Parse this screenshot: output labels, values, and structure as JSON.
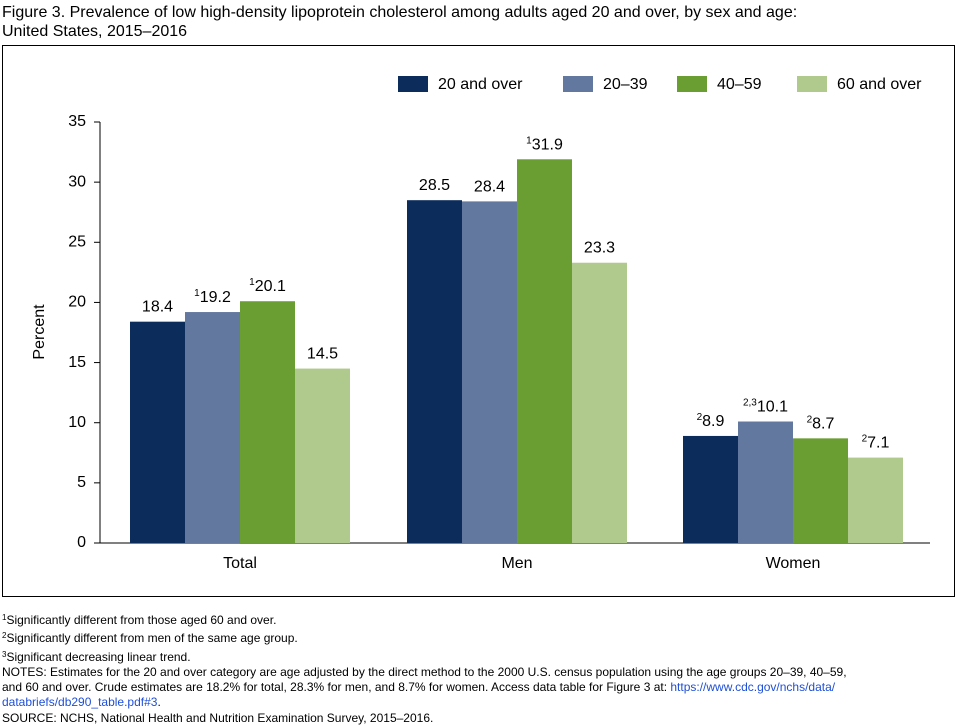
{
  "chart_data": {
    "type": "bar",
    "title": [
      "Figure 3. Prevalence of low high-density lipoprotein cholesterol among adults aged 20 and over, by sex and age:",
      "United States, 2015–2016"
    ],
    "y_label": "Percent",
    "categories": [
      "Total",
      "Men",
      "Women"
    ],
    "series": [
      {
        "name": "20 and over",
        "color": "#0c2c5c",
        "values": [
          18.4,
          28.5,
          8.9
        ],
        "value_notes": [
          null,
          null,
          "2"
        ]
      },
      {
        "name": "20–39",
        "color": "#63789f",
        "values": [
          19.2,
          28.4,
          10.1
        ],
        "value_notes": [
          "1",
          null,
          "2,3"
        ]
      },
      {
        "name": "40–59",
        "color": "#6a9e32",
        "values": [
          20.1,
          31.9,
          8.7
        ],
        "value_notes": [
          "1",
          "1",
          "2"
        ]
      },
      {
        "name": "60 and over",
        "color": "#b0c98c",
        "values": [
          14.5,
          23.3,
          7.1
        ],
        "value_notes": [
          null,
          null,
          "2"
        ]
      }
    ],
    "ylim": [
      0,
      35
    ],
    "yticks": [
      0,
      5,
      10,
      15,
      20,
      25,
      30,
      35
    ],
    "grid": false,
    "legend": "top-right",
    "footnotes": [
      {
        "mark": "1",
        "text": "Significantly different from those aged 60 and over."
      },
      {
        "mark": "2",
        "text": "Significantly different from men of the same age group."
      },
      {
        "mark": "3",
        "text": "Significant decreasing linear trend."
      }
    ],
    "notes": [
      "NOTES: Estimates for the 20 and over category are age adjusted by the direct method to the 2000 U.S. census population using the age groups 20–39, 40–59,",
      "and 60 and over. Crude estimates are 18.2% for total, 28.3% for men, and 8.7% for women. Access data table for Figure 3 at: "
    ],
    "link": [
      "https://www.cdc.gov/nchs/data/",
      "databriefs/db290_table.pdf#3"
    ],
    "link_end": ".",
    "source": "SOURCE: NCHS, National Health and Nutrition Examination Survey, 2015–2016."
  }
}
